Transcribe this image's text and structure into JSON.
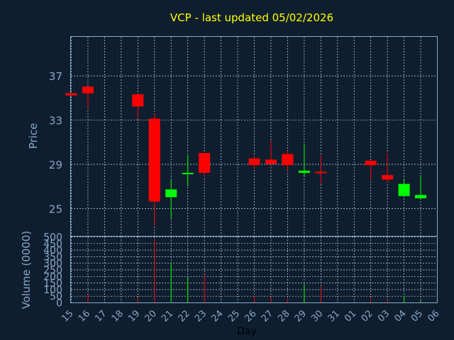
{
  "chart_data": {
    "type": "candlestick",
    "title": "VCP - last updated 05/02/2026",
    "price_panel": {
      "ylabel": "Price",
      "yticks": [
        25,
        29,
        33,
        37
      ],
      "ylim": [
        22.5,
        40.5
      ],
      "grid": true
    },
    "volume_panel": {
      "ylabel": "Volume (0000)",
      "yticks": [
        0,
        50,
        100,
        150,
        200,
        250,
        300,
        350,
        400,
        450,
        500
      ],
      "ylim": [
        0,
        500
      ],
      "grid": true
    },
    "xlabel": "Day",
    "x_ticks": [
      "15",
      "16",
      "17",
      "18",
      "19",
      "20",
      "21",
      "22",
      "23",
      "24",
      "25",
      "26",
      "27",
      "28",
      "29",
      "30",
      "31",
      "01",
      "02",
      "03",
      "04",
      "05",
      "06"
    ],
    "candles": [
      {
        "day": "15",
        "open": 35.4,
        "high": 35.4,
        "low": 35.2,
        "close": 35.2,
        "volume": 0
      },
      {
        "day": "16",
        "open": 36.0,
        "high": 36.0,
        "low": 34.0,
        "close": 35.4,
        "volume": 60
      },
      {
        "day": "19",
        "open": 35.3,
        "high": 35.3,
        "low": 33.1,
        "close": 34.2,
        "volume": 40
      },
      {
        "day": "20",
        "open": 33.1,
        "high": 33.5,
        "low": 23.4,
        "close": 25.6,
        "volume": 480
      },
      {
        "day": "21",
        "open": 26.0,
        "high": 27.6,
        "low": 24.1,
        "close": 26.7,
        "volume": 300
      },
      {
        "day": "22",
        "open": 28.1,
        "high": 29.8,
        "low": 27.0,
        "close": 28.2,
        "volume": 190
      },
      {
        "day": "23",
        "open": 30.0,
        "high": 30.0,
        "low": 27.8,
        "close": 28.2,
        "volume": 210
      },
      {
        "day": "26",
        "open": 29.5,
        "high": 29.7,
        "low": 28.5,
        "close": 28.9,
        "volume": 50
      },
      {
        "day": "27",
        "open": 29.4,
        "high": 31.1,
        "low": 28.9,
        "close": 29.0,
        "volume": 40
      },
      {
        "day": "28",
        "open": 29.9,
        "high": 30.2,
        "low": 28.4,
        "close": 28.9,
        "volume": 30
      },
      {
        "day": "29",
        "open": 28.2,
        "high": 30.8,
        "low": 27.9,
        "close": 28.4,
        "volume": 140
      },
      {
        "day": "30",
        "open": 28.3,
        "high": 29.8,
        "low": 27.2,
        "close": 28.2,
        "volume": 120
      },
      {
        "day": "02",
        "open": 29.3,
        "high": 29.3,
        "low": 27.6,
        "close": 28.9,
        "volume": 30
      },
      {
        "day": "03",
        "open": 28.0,
        "high": 30.0,
        "low": 27.3,
        "close": 27.6,
        "volume": 20
      },
      {
        "day": "04",
        "open": 26.1,
        "high": 27.6,
        "low": 26.1,
        "close": 27.2,
        "volume": 50
      },
      {
        "day": "05",
        "open": 25.9,
        "high": 28.0,
        "low": 25.9,
        "close": 26.2,
        "volume": 20
      }
    ],
    "colors": {
      "up": "#00ff00",
      "down": "#ff0000",
      "background": "#0f1e2f",
      "axis": "#87a7c7",
      "grid": "#c9d7e6",
      "title": "#ffff00"
    }
  }
}
